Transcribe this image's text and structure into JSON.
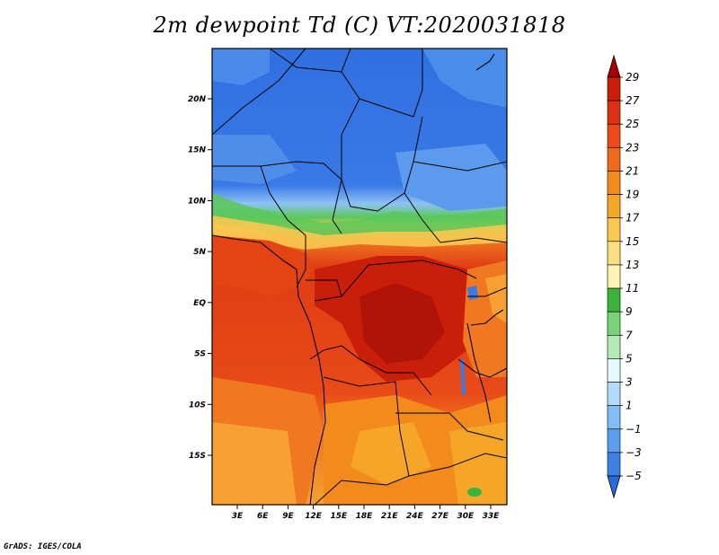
{
  "title": "2m dewpoint Td (C) VT:2020031818",
  "credit": "GrADS: IGES/COLA",
  "lat_labels": [
    "20N",
    "15N",
    "10N",
    "5N",
    "EQ",
    "5S",
    "10S",
    "15S"
  ],
  "lat_values": [
    20,
    15,
    10,
    5,
    0,
    -5,
    -10,
    -15
  ],
  "lon_labels": [
    "3E",
    "6E",
    "9E",
    "12E",
    "15E",
    "18E",
    "21E",
    "24E",
    "27E",
    "30E",
    "33E"
  ],
  "lon_values": [
    3,
    6,
    9,
    12,
    15,
    18,
    21,
    24,
    27,
    30,
    33
  ],
  "colorbar": {
    "labels": [
      "29",
      "27",
      "25",
      "23",
      "21",
      "19",
      "17",
      "15",
      "13",
      "11",
      "9",
      "7",
      "5",
      "3",
      "1",
      "−1",
      "−3",
      "−5"
    ],
    "colors": [
      "#a80000",
      "#c81e0a",
      "#dc3214",
      "#ec4a1a",
      "#f06a1c",
      "#f28a1c",
      "#f5a628",
      "#f8c850",
      "#fadf82",
      "#fcf3b4",
      "#3cb43c",
      "#78d278",
      "#b4eab4",
      "#e6f8ff",
      "#b4dcfa",
      "#82bef5",
      "#5a9ef0",
      "#3c82e6",
      "#2a6ad8"
    ]
  },
  "colors": {
    "dry_blue": "#2f6fe0",
    "mid_blue": "#5a96ec",
    "green": "#5ac85a",
    "hot_red": "#c81e0a",
    "red": "#e03c14",
    "orange": "#f07820",
    "light_orange": "#f5a030"
  }
}
